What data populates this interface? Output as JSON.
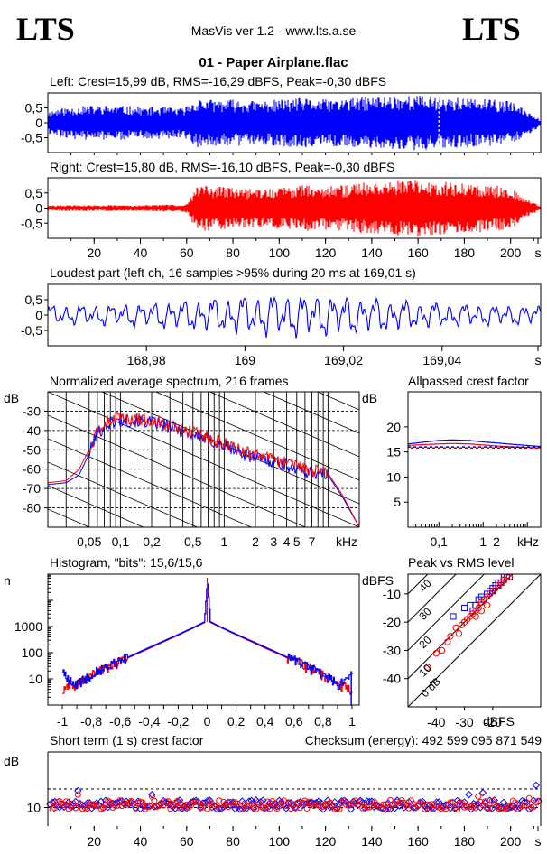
{
  "header": {
    "logo_left": "LTS",
    "logo_right": "LTS",
    "app": "MasVis ver 1.2 - www.lts.a.se",
    "file": "01 - Paper Airplane.flac"
  },
  "colors": {
    "left": "#0000ff",
    "right": "#ff0000",
    "dash_left": "#0000aa",
    "dash_right": "#aa0000"
  },
  "chart_data": [
    {
      "id": "left-waveform",
      "type": "area",
      "title": "Left: Crest=15,99 dB, RMS=-16,29 dBFS, Peak=-0,30 dBFS",
      "xlim": [
        0,
        213
      ],
      "ylim": [
        -1,
        1
      ],
      "yticks": [
        "0,5",
        "0",
        "-0,5"
      ],
      "x": [
        0,
        5,
        10,
        20,
        30,
        40,
        50,
        58,
        60,
        65,
        70,
        80,
        90,
        100,
        110,
        120,
        130,
        140,
        150,
        160,
        170,
        180,
        190,
        200,
        205,
        210,
        213
      ],
      "amplitude": [
        0.4,
        0.5,
        0.55,
        0.6,
        0.6,
        0.55,
        0.55,
        0.5,
        0.6,
        0.85,
        0.8,
        0.8,
        0.75,
        0.8,
        0.85,
        0.8,
        0.85,
        0.9,
        0.95,
        0.95,
        0.9,
        0.85,
        0.8,
        0.75,
        0.5,
        0.3,
        0.1
      ],
      "marker_x": 169.01
    },
    {
      "id": "right-waveform",
      "type": "area",
      "title": "Right: Crest=15,80 dB, RMS=-16,10 dBFS, Peak=-0,30 dBFS",
      "xlim": [
        0,
        213
      ],
      "ylim": [
        -1,
        1
      ],
      "yticks": [
        "0,5",
        "0",
        "-0,5"
      ],
      "xticks": [
        "20",
        "40",
        "60",
        "80",
        "100",
        "120",
        "140",
        "160",
        "180",
        "200",
        "s"
      ],
      "x": [
        0,
        5,
        10,
        20,
        30,
        40,
        50,
        58,
        60,
        65,
        70,
        80,
        90,
        100,
        110,
        120,
        130,
        140,
        150,
        160,
        170,
        180,
        190,
        200,
        205,
        210,
        213
      ],
      "amplitude": [
        0.08,
        0.1,
        0.1,
        0.1,
        0.1,
        0.1,
        0.12,
        0.12,
        0.2,
        0.8,
        0.75,
        0.7,
        0.65,
        0.7,
        0.8,
        0.75,
        0.8,
        0.9,
        0.95,
        0.95,
        0.9,
        0.85,
        0.8,
        0.75,
        0.4,
        0.2,
        0.05
      ]
    },
    {
      "id": "loudest-part",
      "type": "line",
      "title": "Loudest part (left  ch, 16 samples >95% during 20 ms at 169,01 s)",
      "xlim": [
        168.96,
        169.06
      ],
      "ylim": [
        -1,
        1
      ],
      "yticks": [
        "0,5",
        "0",
        "-0,5"
      ],
      "xticks": [
        "168,98",
        "169",
        "169,02",
        "169,04",
        "s"
      ]
    },
    {
      "id": "spectrum",
      "type": "line",
      "title": "Normalized average spectrum, 216 frames",
      "ylabel": "dB",
      "yticks": [
        "-30",
        "-40",
        "-50",
        "-60",
        "-70",
        "-80"
      ],
      "xticks": [
        "0,05",
        "0,1",
        "0,2",
        "0,5",
        "1",
        "2",
        "3",
        "4",
        "5",
        "7",
        "kHz"
      ],
      "xlim_khz": [
        0.02,
        20
      ],
      "ylim": [
        -90,
        -20
      ],
      "x_khz": [
        0.02,
        0.03,
        0.04,
        0.05,
        0.06,
        0.08,
        0.1,
        0.15,
        0.2,
        0.3,
        0.5,
        0.7,
        1,
        1.5,
        2,
        3,
        4,
        5,
        7,
        10,
        14,
        20
      ],
      "series": [
        {
          "y": [
            -68,
            -67,
            -63,
            -52,
            -41,
            -36,
            -35,
            -35,
            -36,
            -38,
            -42,
            -45,
            -48,
            -52,
            -54,
            -56,
            -58,
            -60,
            -62,
            -63,
            -75,
            -90
          ]
        },
        {
          "y": [
            -67,
            -66,
            -60,
            -50,
            -40,
            -34,
            -33,
            -34,
            -35,
            -37,
            -41,
            -44,
            -47,
            -51,
            -53,
            -55,
            -57,
            -59,
            -61,
            -62,
            -74,
            -90
          ]
        }
      ]
    },
    {
      "id": "allpassed-crest",
      "type": "line",
      "title": "Allpassed crest factor",
      "ylabel": "dB",
      "yticks": [
        "20",
        "15",
        "10",
        "5"
      ],
      "xticks": [
        "0,1",
        "1",
        "2",
        "kHz"
      ],
      "ylim": [
        0,
        27
      ],
      "xlim_khz": [
        0.02,
        20
      ],
      "x_khz": [
        0.02,
        0.05,
        0.1,
        0.2,
        0.5,
        1,
        2,
        5,
        10,
        20
      ],
      "series": [
        {
          "y": [
            16.6,
            17.0,
            17.3,
            17.4,
            17.3,
            17.0,
            16.8,
            16.5,
            16.3,
            16.1
          ]
        },
        {
          "y": [
            16.3,
            16.5,
            16.6,
            16.7,
            16.6,
            16.4,
            16.2,
            16.0,
            15.9,
            15.8
          ]
        }
      ],
      "reference": [
        16.0,
        15.8
      ]
    },
    {
      "id": "histogram",
      "type": "line",
      "title": "Histogram, \"bits\": 15,6/15,6",
      "ylabel": "n",
      "yticks": [
        "1000",
        "100",
        "10"
      ],
      "xticks": [
        "-1",
        "-0,8",
        "-0,6",
        "-0,4",
        "-0,2",
        "0",
        "0,2",
        "0,4",
        "0,6",
        "0,8",
        "1"
      ],
      "xlim": [
        -1.1,
        1.05
      ],
      "ylim_log": [
        1,
        100000
      ],
      "x": [
        -1,
        -0.96,
        -0.9,
        -0.8,
        -0.6,
        -0.4,
        -0.2,
        -0.1,
        -0.02,
        0,
        0.02,
        0.1,
        0.2,
        0.4,
        0.6,
        0.8,
        0.9,
        0.96,
        1
      ],
      "series": [
        {
          "y": [
            20,
            8,
            6,
            15,
            50,
            160,
            500,
            900,
            1500,
            60000,
            1500,
            900,
            500,
            160,
            50,
            15,
            6,
            8,
            20
          ]
        },
        {
          "y": [
            3,
            5,
            6,
            14,
            48,
            150,
            480,
            880,
            1450,
            55000,
            1450,
            880,
            480,
            150,
            48,
            14,
            6,
            5,
            3
          ]
        }
      ]
    },
    {
      "id": "peak-vs-rms",
      "type": "scatter",
      "title": "Peak vs RMS level",
      "ylabel": "dBFS",
      "xlabel": "dBFS",
      "yticks": [
        "-10",
        "-20",
        "-30",
        "-40"
      ],
      "xticks": [
        "-40",
        "-30",
        "-20"
      ],
      "diagonal_labels": [
        "40",
        "30",
        "20",
        "10",
        "0 dB"
      ],
      "xlim": [
        -50,
        -3
      ],
      "ylim": [
        -50,
        -3
      ],
      "series": [
        {
          "points": [
            [
              -34,
              -18
            ],
            [
              -30,
              -15
            ],
            [
              -28,
              -14
            ],
            [
              -26,
              -14
            ],
            [
              -25,
              -12
            ],
            [
              -24,
              -11
            ],
            [
              -22,
              -10
            ],
            [
              -21,
              -9
            ],
            [
              -20,
              -8
            ],
            [
              -19,
              -7
            ],
            [
              -18,
              -7
            ],
            [
              -17,
              -6
            ],
            [
              -16,
              -5
            ],
            [
              -15,
              -4
            ],
            [
              -14,
              -4
            ],
            [
              -23,
              -12
            ],
            [
              -27,
              -16
            ],
            [
              -20,
              -9
            ],
            [
              -18,
              -6
            ],
            [
              -16,
              -4
            ]
          ]
        },
        {
          "points": [
            [
              -43,
              -36
            ],
            [
              -40,
              -31
            ],
            [
              -38,
              -30
            ],
            [
              -36,
              -27
            ],
            [
              -35,
              -25
            ],
            [
              -33,
              -22
            ],
            [
              -31,
              -21
            ],
            [
              -30,
              -20
            ],
            [
              -29,
              -19
            ],
            [
              -28,
              -18
            ],
            [
              -27,
              -17
            ],
            [
              -26,
              -16
            ],
            [
              -25,
              -15
            ],
            [
              -24,
              -13
            ],
            [
              -23,
              -12
            ],
            [
              -22,
              -11
            ],
            [
              -21,
              -10
            ],
            [
              -20,
              -9
            ],
            [
              -19,
              -8
            ],
            [
              -18,
              -7
            ],
            [
              -17,
              -6
            ],
            [
              -16,
              -5
            ],
            [
              -15,
              -4
            ],
            [
              -14,
              -4
            ],
            [
              -32,
              -24
            ],
            [
              -26,
              -18
            ],
            [
              -24,
              -16
            ],
            [
              -22,
              -14
            ]
          ]
        }
      ]
    },
    {
      "id": "short-term-crest",
      "type": "scatter",
      "title": "Short term (1 s) crest factor",
      "checksum": "Checksum (energy):   492 599 095 871 549",
      "ylabel": "dB",
      "ytick": "10",
      "xticks": [
        "20",
        "40",
        "60",
        "80",
        "100",
        "120",
        "140",
        "160",
        "180",
        "200",
        "s"
      ],
      "xlim": [
        0,
        213
      ],
      "ylim": [
        0,
        40
      ],
      "dashed_levels": [
        20,
        10
      ],
      "series": [
        {
          "outliers": [
            [
              13,
              19
            ],
            [
              45,
              17
            ],
            [
              182,
              17
            ],
            [
              188,
              18
            ],
            [
              211,
              22
            ]
          ]
        },
        {
          "outliers": [
            [
              13,
              17
            ],
            [
              45,
              16
            ],
            [
              186,
              16
            ],
            [
              208,
              15
            ]
          ]
        }
      ]
    }
  ]
}
